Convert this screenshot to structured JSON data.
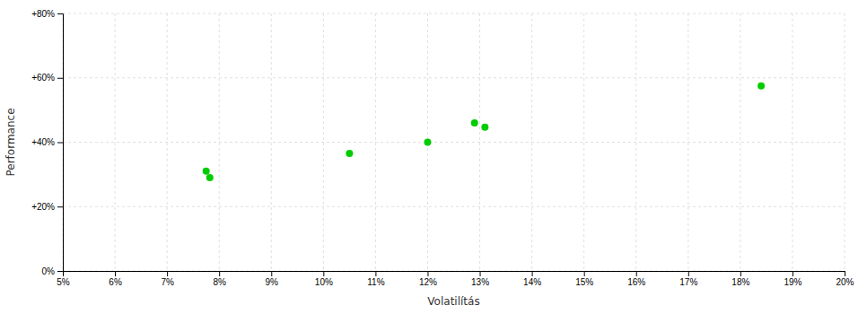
{
  "chart_data": {
    "type": "scatter",
    "xlabel": "Volatilítás",
    "ylabel": "Performance",
    "x": [
      0.0775,
      0.0782,
      0.105,
      0.12,
      0.129,
      0.131,
      0.184
    ],
    "values": [
      0.31,
      0.29,
      0.365,
      0.4,
      0.46,
      0.447,
      0.575
    ],
    "color": "#00cc00",
    "xlim": [
      0.05,
      0.2
    ],
    "ylim": [
      0.0,
      0.8
    ],
    "xticks": [
      {
        "value": 0.05,
        "label": "5%"
      },
      {
        "value": 0.06,
        "label": "6%"
      },
      {
        "value": 0.07,
        "label": "7%"
      },
      {
        "value": 0.08,
        "label": "8%"
      },
      {
        "value": 0.09,
        "label": "9%"
      },
      {
        "value": 0.1,
        "label": "10%"
      },
      {
        "value": 0.11,
        "label": "11%"
      },
      {
        "value": 0.12,
        "label": "12%"
      },
      {
        "value": 0.13,
        "label": "13%"
      },
      {
        "value": 0.14,
        "label": "14%"
      },
      {
        "value": 0.15,
        "label": "15%"
      },
      {
        "value": 0.16,
        "label": "16%"
      },
      {
        "value": 0.17,
        "label": "17%"
      },
      {
        "value": 0.18,
        "label": "18%"
      },
      {
        "value": 0.19,
        "label": "19%"
      },
      {
        "value": 0.2,
        "label": "20%"
      }
    ],
    "yticks": [
      {
        "value": 0.0,
        "label": "0%"
      },
      {
        "value": 0.2,
        "label": "+20%"
      },
      {
        "value": 0.4,
        "label": "+40%"
      },
      {
        "value": 0.6,
        "label": "+60%"
      },
      {
        "value": 0.8,
        "label": "+80%"
      }
    ],
    "grid": true
  }
}
